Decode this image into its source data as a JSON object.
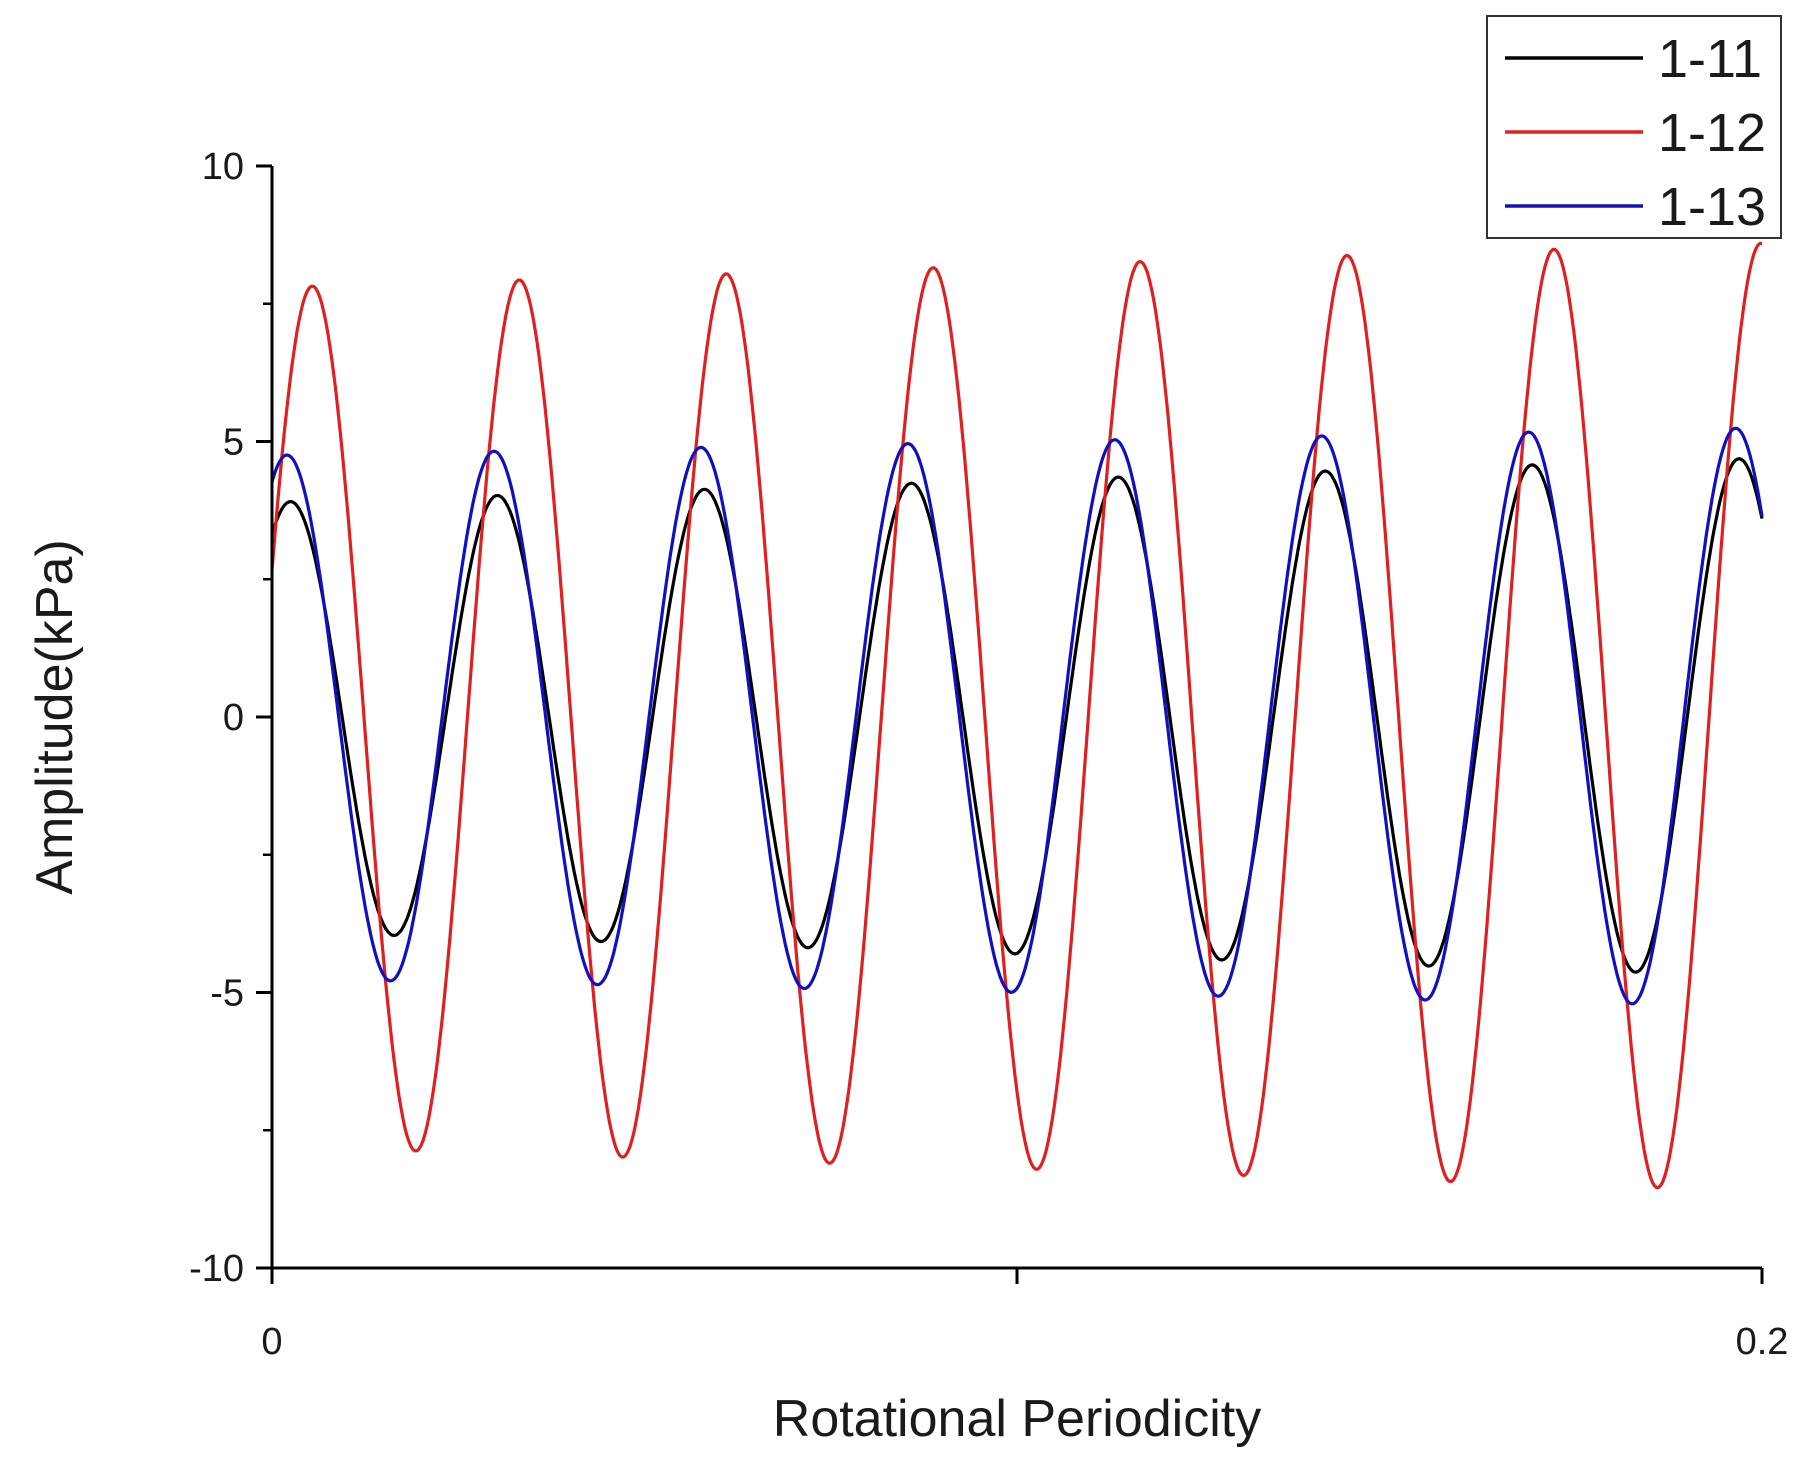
{
  "chart_data": {
    "type": "line",
    "title": "",
    "xlabel": "Rotational Periodicity",
    "ylabel": "Amplitude(kPa)",
    "xlim": [
      0,
      0.2
    ],
    "ylim": [
      -10,
      10
    ],
    "x_ticks": [
      0,
      0.1,
      0.2
    ],
    "x_tick_labels": [
      "0",
      "",
      "0.2"
    ],
    "y_ticks": [
      10,
      5,
      0,
      -5,
      -10
    ],
    "y_tick_labels": [
      "10",
      "5",
      "0",
      "-5",
      "-10"
    ],
    "y_minor_ticks": [
      7.5,
      2.5,
      -2.5,
      -7.5
    ],
    "grid": false,
    "legend_position": "top-right",
    "cycles": 7.2,
    "series": [
      {
        "name": "1-11",
        "color": "#000000",
        "amp_start": 3.9,
        "amp_end": 4.7,
        "phase_deg": 58
      },
      {
        "name": "1-12",
        "color": "#e02020",
        "amp_start": 7.8,
        "amp_end": 8.6,
        "phase_deg": 20
      },
      {
        "name": "1-13",
        "color": "#1010c0",
        "amp_start": 4.75,
        "amp_end": 5.25,
        "phase_deg": 64
      }
    ]
  }
}
